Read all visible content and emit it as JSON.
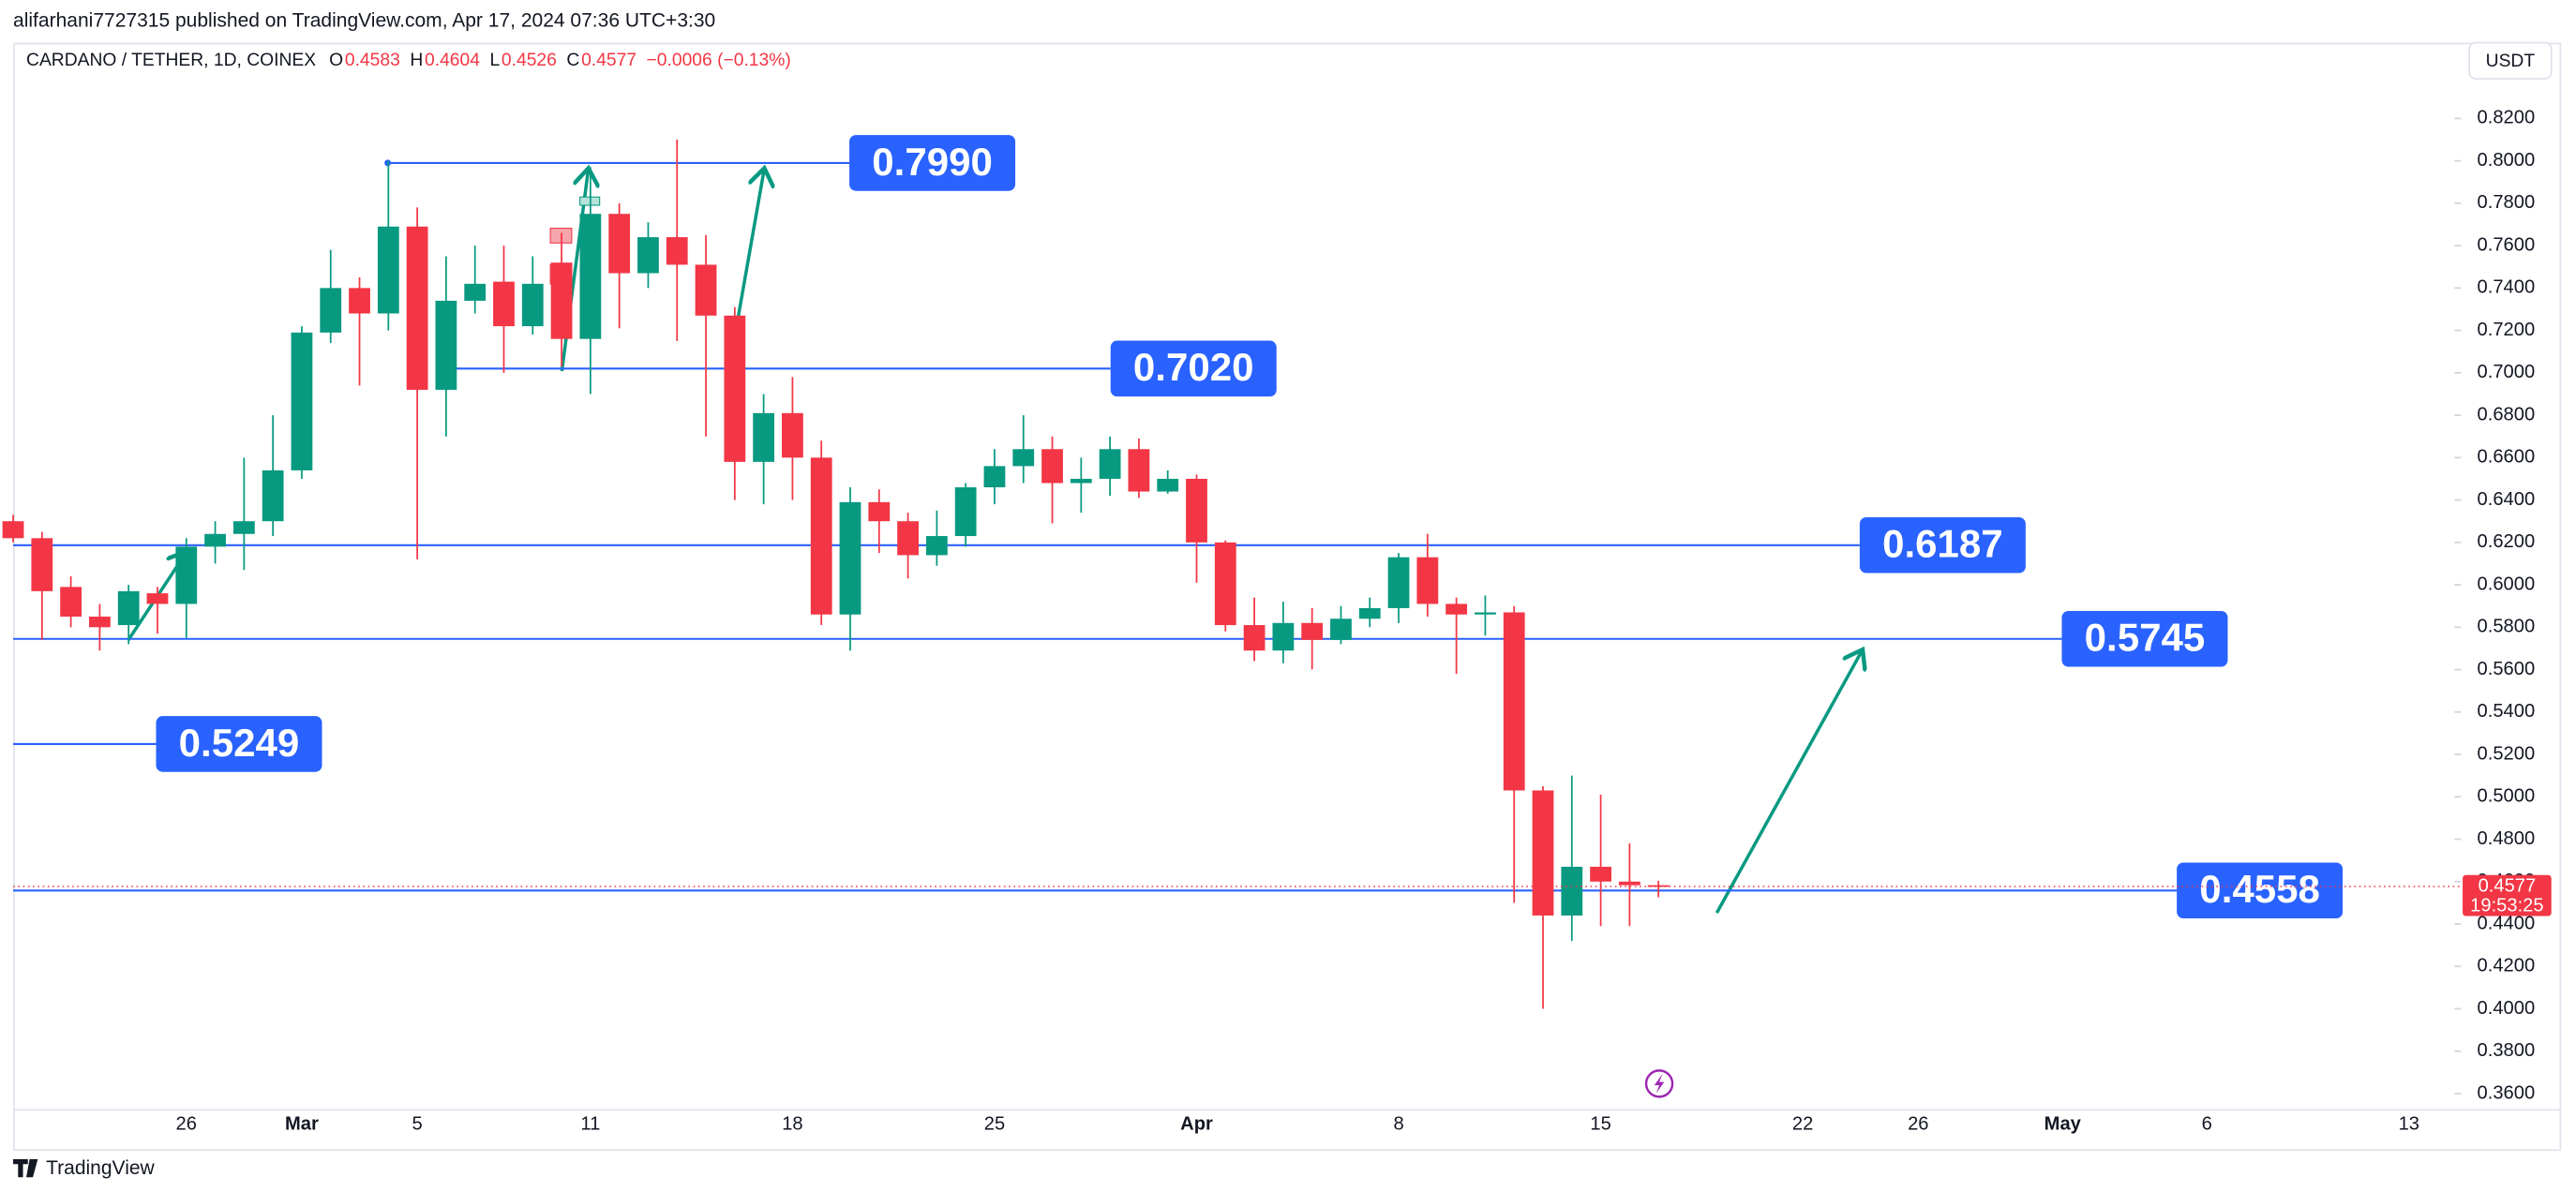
{
  "header": {
    "publisher": "alifarhani7727315 published on TradingView.com, Apr 17, 2024 07:36 UTC+3:30",
    "symbol": "CARDANO / TETHER, 1D, COINEX",
    "ohlc": [
      {
        "key": "O",
        "value": "0.4583"
      },
      {
        "key": "H",
        "value": "0.4604"
      },
      {
        "key": "L",
        "value": "0.4526"
      },
      {
        "key": "C",
        "value": "0.4577"
      }
    ],
    "change": "−0.0006 (−0.13%)",
    "currency": "USDT",
    "footer": "TradingView"
  },
  "chart_data": {
    "type": "candlestick",
    "up_color": "#089981",
    "down_color": "#f23645",
    "level_color": "#2962ff",
    "categories": [
      null,
      null,
      null,
      null,
      null,
      null,
      "26",
      null,
      null,
      null,
      "Mar",
      null,
      null,
      null,
      "5",
      null,
      null,
      null,
      null,
      null,
      "11",
      null,
      null,
      null,
      null,
      null,
      null,
      "18",
      null,
      null,
      null,
      null,
      null,
      null,
      "25",
      null,
      null,
      null,
      null,
      null,
      null,
      "Apr",
      null,
      null,
      null,
      null,
      null,
      null,
      "8",
      null,
      null,
      null,
      null,
      null,
      null,
      "15",
      null,
      null,
      null,
      null,
      null,
      null,
      "22",
      null,
      null,
      null,
      "26",
      null,
      null,
      null,
      null,
      "May",
      null,
      null,
      null,
      null,
      "6",
      null,
      null,
      null,
      null,
      null,
      null,
      "13",
      null
    ],
    "open": [
      0.63,
      0.622,
      0.599,
      0.585,
      0.581,
      0.596,
      0.591,
      0.618,
      0.624,
      0.63,
      0.654,
      0.719,
      0.74,
      0.728,
      0.769,
      0.692,
      0.734,
      0.743,
      0.722,
      0.752,
      0.716,
      0.775,
      0.747,
      0.764,
      0.751,
      0.727,
      0.658,
      0.681,
      0.66,
      0.586,
      0.639,
      0.63,
      0.614,
      0.623,
      0.646,
      0.656,
      0.664,
      0.648,
      0.65,
      0.664,
      0.644,
      0.65,
      0.62,
      0.581,
      0.569,
      0.582,
      0.574,
      0.584,
      0.589,
      0.613,
      0.591,
      0.586,
      0.587,
      0.503,
      0.444,
      0.467,
      0.46,
      0.4583,
      null,
      null,
      null,
      null,
      null,
      null,
      null,
      null,
      null,
      null,
      null,
      null,
      null,
      null,
      null,
      null,
      null,
      null,
      null,
      null,
      null,
      null,
      null,
      null,
      null,
      null,
      null
    ],
    "high": [
      0.633,
      0.625,
      0.604,
      0.591,
      0.6,
      0.599,
      0.622,
      0.63,
      0.66,
      0.68,
      0.722,
      0.758,
      0.745,
      0.8,
      0.778,
      0.755,
      0.76,
      0.76,
      0.755,
      0.766,
      0.797,
      0.78,
      0.771,
      0.81,
      0.765,
      0.731,
      0.69,
      0.698,
      0.668,
      0.646,
      0.645,
      0.634,
      0.635,
      0.648,
      0.664,
      0.68,
      0.67,
      0.66,
      0.67,
      0.669,
      0.654,
      0.652,
      0.621,
      0.594,
      0.592,
      0.589,
      0.59,
      0.594,
      0.615,
      0.624,
      0.594,
      0.595,
      0.59,
      0.505,
      0.51,
      0.501,
      0.478,
      0.4604,
      null,
      null,
      null,
      null,
      null,
      null,
      null,
      null,
      null,
      null,
      null,
      null,
      null,
      null,
      null,
      null,
      null,
      null,
      null,
      null,
      null,
      null,
      null,
      null,
      null,
      null,
      null
    ],
    "low": [
      0.62,
      0.574,
      0.58,
      0.569,
      0.572,
      0.577,
      0.575,
      0.61,
      0.607,
      0.623,
      0.65,
      0.714,
      0.694,
      0.72,
      0.612,
      0.67,
      0.728,
      0.7,
      0.718,
      0.703,
      0.69,
      0.721,
      0.74,
      0.715,
      0.67,
      0.64,
      0.638,
      0.64,
      0.581,
      0.569,
      0.615,
      0.603,
      0.609,
      0.618,
      0.638,
      0.648,
      0.629,
      0.634,
      0.642,
      0.641,
      0.643,
      0.601,
      0.578,
      0.564,
      0.563,
      0.56,
      0.572,
      0.58,
      0.582,
      0.585,
      0.558,
      0.576,
      0.45,
      0.4,
      0.432,
      0.439,
      0.439,
      0.4526,
      null,
      null,
      null,
      null,
      null,
      null,
      null,
      null,
      null,
      null,
      null,
      null,
      null,
      null,
      null,
      null,
      null,
      null,
      null,
      null,
      null,
      null,
      null,
      null,
      null,
      null,
      null
    ],
    "close": [
      0.622,
      0.597,
      0.585,
      0.58,
      0.597,
      0.591,
      0.618,
      0.624,
      0.63,
      0.654,
      0.719,
      0.74,
      0.728,
      0.769,
      0.692,
      0.734,
      0.742,
      0.722,
      0.742,
      0.716,
      0.775,
      0.747,
      0.764,
      0.751,
      0.727,
      0.658,
      0.681,
      0.66,
      0.586,
      0.639,
      0.63,
      0.614,
      0.623,
      0.646,
      0.656,
      0.664,
      0.648,
      0.65,
      0.664,
      0.644,
      0.65,
      0.62,
      0.581,
      0.569,
      0.582,
      0.574,
      0.584,
      0.589,
      0.613,
      0.591,
      0.586,
      0.587,
      0.503,
      0.444,
      0.467,
      0.46,
      0.4583,
      0.4577,
      null,
      null,
      null,
      null,
      null,
      null,
      null,
      null,
      null,
      null,
      null,
      null,
      null,
      null,
      null,
      null,
      null,
      null,
      null,
      null,
      null,
      null,
      null,
      null,
      null,
      null,
      null
    ],
    "ylim": [
      0.3523,
      0.8387
    ],
    "yticks": [
      {
        "value": 0.36,
        "label": "0.3600"
      },
      {
        "value": 0.38,
        "label": "0.3800"
      },
      {
        "value": 0.4,
        "label": "0.4000"
      },
      {
        "value": 0.42,
        "label": "0.4200"
      },
      {
        "value": 0.44,
        "label": "0.4400"
      },
      {
        "value": 0.46,
        "label": "0.4600"
      },
      {
        "value": 0.48,
        "label": "0.4800"
      },
      {
        "value": 0.5,
        "label": "0.5000"
      },
      {
        "value": 0.52,
        "label": "0.5200"
      },
      {
        "value": 0.54,
        "label": "0.5400"
      },
      {
        "value": 0.56,
        "label": "0.5600"
      },
      {
        "value": 0.58,
        "label": "0.5800"
      },
      {
        "value": 0.6,
        "label": "0.6000"
      },
      {
        "value": 0.62,
        "label": "0.6200"
      },
      {
        "value": 0.64,
        "label": "0.6400"
      },
      {
        "value": 0.66,
        "label": "0.6600"
      },
      {
        "value": 0.68,
        "label": "0.6800"
      },
      {
        "value": 0.7,
        "label": "0.7000"
      },
      {
        "value": 0.72,
        "label": "0.7200"
      },
      {
        "value": 0.74,
        "label": "0.7400"
      },
      {
        "value": 0.76,
        "label": "0.7600"
      },
      {
        "value": 0.78,
        "label": "0.7800"
      },
      {
        "value": 0.8,
        "label": "0.8000"
      },
      {
        "value": 0.82,
        "label": "0.8200"
      }
    ],
    "levels": [
      {
        "value": 0.799,
        "label": "0.7990"
      },
      {
        "value": 0.702,
        "label": "0.7020"
      },
      {
        "value": 0.6187,
        "label": "0.6187"
      },
      {
        "value": 0.5745,
        "label": "0.5745"
      },
      {
        "value": 0.5249,
        "label": "0.5249"
      },
      {
        "value": 0.4558,
        "label": "0.4558"
      }
    ],
    "last_price": {
      "value": 0.4577,
      "label": "0.4577",
      "countdown": "19:53:25"
    }
  }
}
